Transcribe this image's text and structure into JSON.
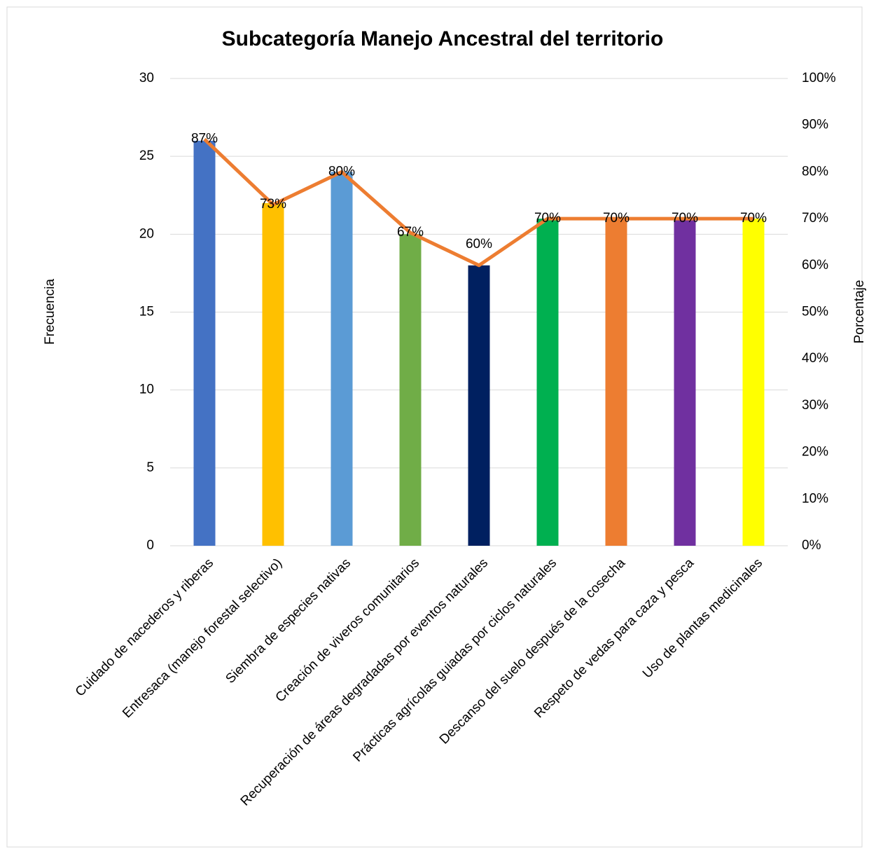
{
  "chart_data": {
    "type": "combo",
    "title": "Subcategoría Manejo Ancestral del territorio",
    "y_label": "Frecuencia",
    "y2_label": "Porcentaje",
    "categories": [
      "Cuidado de nacederos y riberas",
      "Entresaca (manejo forestal selectivo)",
      "Siembra de especies nativas",
      "Creación de viveros comunitarios",
      "Recuperación de áreas degradadas por eventos naturales",
      "Prácticas agrícolas guiadas por ciclos naturales",
      "Descanso del suelo después de la cosecha",
      "Respeto de vedas para caza y pesca",
      "Uso de plantas medicinales"
    ],
    "series": [
      {
        "type": "bar",
        "colors": [
          "#4472c4",
          "#ffc000",
          "#5b9bd5",
          "#70ad47",
          "#002060",
          "#00b050",
          "#ed7d31",
          "#7030a0",
          "#ffff00"
        ],
        "values": [
          26,
          22,
          24,
          20,
          18,
          21,
          21,
          21,
          21
        ]
      },
      {
        "type": "line",
        "axis": "y2",
        "color": "#ed7d31",
        "values": [
          87,
          73,
          80,
          67,
          60,
          70,
          70,
          70,
          70
        ],
        "value_labels": [
          "87%",
          "73%",
          "80%",
          "67%",
          "60%",
          "70%",
          "70%",
          "70%",
          "70%"
        ]
      }
    ],
    "ylim": [
      0,
      30
    ],
    "yticks": [
      0,
      5,
      10,
      15,
      20,
      25,
      30
    ],
    "y2lim": [
      0,
      100
    ],
    "y2ticks": [
      {
        "value": 0,
        "label": "0%"
      },
      {
        "value": 10,
        "label": "10%"
      },
      {
        "value": 20,
        "label": "20%"
      },
      {
        "value": 30,
        "label": "30%"
      },
      {
        "value": 40,
        "label": "40%"
      },
      {
        "value": 50,
        "label": "50%"
      },
      {
        "value": 60,
        "label": "60%"
      },
      {
        "value": 70,
        "label": "70%"
      },
      {
        "value": 80,
        "label": "80%"
      },
      {
        "value": 90,
        "label": "90%"
      },
      {
        "value": 100,
        "label": "100%"
      }
    ],
    "grid": true
  }
}
